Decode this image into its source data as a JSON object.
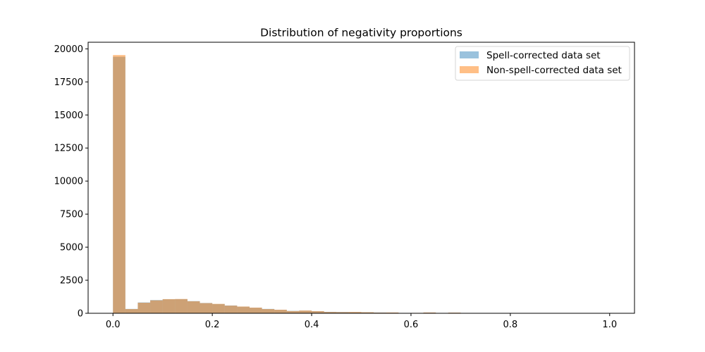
{
  "chart_data": {
    "type": "histogram",
    "title": "Distribution of negativity proportions",
    "xlabel": "",
    "ylabel": "",
    "xlim": [
      -0.05,
      1.05
    ],
    "ylim": [
      0,
      20500
    ],
    "xticks": [
      0.0,
      0.2,
      0.4,
      0.6,
      0.8,
      1.0
    ],
    "xtick_labels": [
      "0.0",
      "0.2",
      "0.4",
      "0.6",
      "0.8",
      "1.0"
    ],
    "yticks": [
      0,
      2500,
      5000,
      7500,
      10000,
      12500,
      15000,
      17500,
      20000
    ],
    "ytick_labels": [
      "0",
      "2500",
      "5000",
      "7500",
      "10000",
      "12500",
      "15000",
      "17500",
      "20000"
    ],
    "grid": false,
    "legend_position": "top-right",
    "bin_edges": [
      0.0,
      0.025,
      0.05,
      0.075,
      0.1,
      0.125,
      0.15,
      0.175,
      0.2,
      0.225,
      0.25,
      0.275,
      0.3,
      0.325,
      0.35,
      0.375,
      0.4,
      0.425,
      0.45,
      0.475,
      0.5,
      0.525,
      0.55,
      0.575,
      0.6,
      0.625,
      0.65,
      0.675,
      0.7,
      0.725,
      0.75,
      0.775,
      0.8,
      0.825,
      0.85,
      0.875,
      0.9,
      0.925,
      0.95,
      0.975,
      1.0
    ],
    "series": [
      {
        "name": "Spell-corrected data set",
        "color": "#1f77b4",
        "opacity": 0.45,
        "values": [
          19400,
          330,
          820,
          1000,
          1060,
          1070,
          920,
          780,
          700,
          590,
          500,
          420,
          330,
          260,
          180,
          200,
          160,
          110,
          100,
          90,
          80,
          60,
          50,
          20,
          20,
          50,
          20,
          40,
          10,
          5,
          5,
          5,
          5,
          5,
          5,
          5,
          5,
          5,
          5,
          5
        ]
      },
      {
        "name": "Non-spell-corrected data set",
        "color": "#ff7f0e",
        "opacity": 0.5,
        "values": [
          19530,
          320,
          800,
          980,
          1070,
          1080,
          910,
          770,
          710,
          580,
          510,
          430,
          320,
          270,
          170,
          210,
          160,
          100,
          90,
          100,
          80,
          50,
          60,
          20,
          30,
          60,
          20,
          50,
          10,
          5,
          5,
          5,
          5,
          5,
          5,
          5,
          5,
          5,
          5,
          5
        ]
      }
    ]
  }
}
